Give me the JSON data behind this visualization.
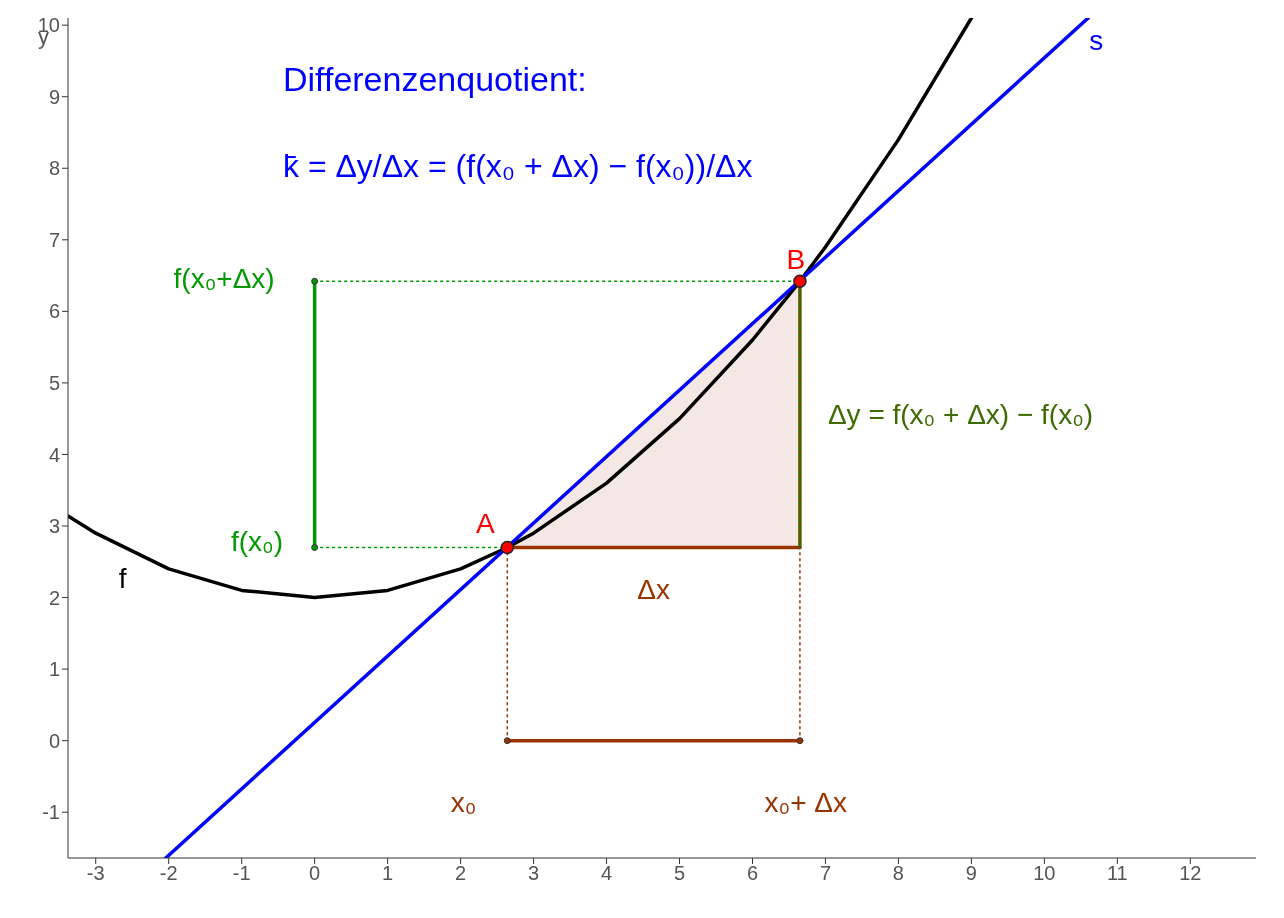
{
  "chart_data": {
    "type": "line",
    "title": "Differenzenquotient:",
    "subtitle": "k̄ = Δy/Δx = (f(x₀ + Δx) − f(x₀))/Δx",
    "ylabel": "y",
    "xlim": [
      -3.38,
      12.9
    ],
    "ylim": [
      -1.64,
      10.1
    ],
    "xticks": [
      -3,
      -2,
      -1,
      0,
      1,
      2,
      3,
      4,
      5,
      6,
      7,
      8,
      9,
      10,
      11,
      12
    ],
    "yticks": [
      -1,
      0,
      1,
      2,
      3,
      4,
      5,
      6,
      7,
      8,
      9,
      10
    ],
    "marker": "none",
    "line_style": "solid",
    "series": [
      {
        "type": "area",
        "color": "#f3e8e4",
        "x": [
          2.64,
          6.65
        ],
        "values": [
          2.7,
          6.42
        ]
      },
      {
        "name": "f",
        "color": "#000000",
        "x": [
          -3.38,
          -3,
          -2,
          -1,
          0,
          1,
          2,
          2.64,
          3,
          4,
          5,
          6,
          6.65,
          7,
          8,
          9
        ],
        "values": [
          3.14,
          2.9,
          2.4,
          2.1,
          2,
          2.1,
          2.4,
          2.7,
          2.9,
          3.6,
          4.5,
          5.6,
          6.42,
          6.9,
          8.4,
          10.1
        ]
      },
      {
        "name": "s",
        "color": "#0000ff",
        "x": [
          -2.04,
          10.6
        ],
        "values": [
          -1.64,
          10.1
        ]
      },
      {
        "name": "Δx",
        "color": "#993300",
        "x": [
          2.64,
          6.65
        ],
        "values": [
          2.7,
          2.7
        ]
      },
      {
        "name": "Δy = f(x₀ + Δx) − f(x₀)",
        "color": "#3d6b00",
        "x": [
          6.65,
          6.65
        ],
        "values": [
          2.7,
          6.42
        ]
      },
      {
        "color": "#993300",
        "marker": "circle",
        "x": [
          2.64,
          6.65
        ],
        "values": [
          0,
          0
        ]
      },
      {
        "color": "#009900",
        "marker": "circle",
        "x": [
          0,
          0
        ],
        "values": [
          2.7,
          6.42
        ]
      },
      {
        "color": "#009900",
        "line_style": "dotted",
        "x": [
          0,
          2.64
        ],
        "values": [
          2.7,
          2.7
        ]
      },
      {
        "color": "#009900",
        "line_style": "dotted",
        "x": [
          0,
          6.65
        ],
        "values": [
          6.42,
          6.42
        ]
      },
      {
        "color": "#993300",
        "line_style": "dotted",
        "x": [
          2.64,
          2.64
        ],
        "values": [
          0,
          2.7
        ]
      },
      {
        "color": "#993300",
        "line_style": "dotted",
        "x": [
          6.65,
          6.65
        ],
        "values": [
          0,
          6.42
        ]
      },
      {
        "type": "scatter",
        "name": "A",
        "color": "#ff0000",
        "marker": "circle",
        "x": [
          2.64
        ],
        "values": [
          2.7
        ]
      },
      {
        "type": "scatter",
        "name": "B",
        "color": "#ff0000",
        "marker": "circle",
        "x": [
          6.65
        ],
        "values": [
          6.42
        ]
      }
    ],
    "annotations": [
      "x₀",
      "x₀+ Δx",
      "f(x₀)",
      "f(x₀+Δx)"
    ]
  }
}
